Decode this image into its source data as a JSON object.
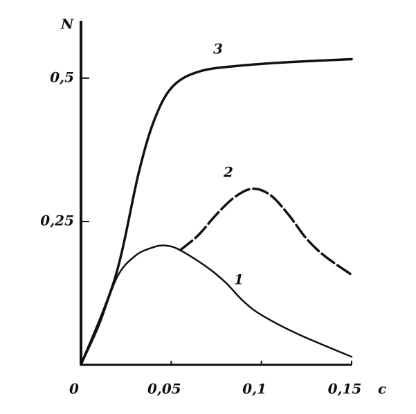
{
  "chart_data": {
    "type": "line",
    "x_label": "с",
    "y_label": "N",
    "xlim": [
      0,
      0.15
    ],
    "ylim": [
      0,
      0.6
    ],
    "xticks": [
      0,
      {
        "value": 0.05,
        "label": "0,05"
      },
      {
        "value": 0.1,
        "label": "0,1"
      },
      {
        "value": 0.15,
        "label": "0,15"
      }
    ],
    "yticks": [
      {
        "value": 0.25,
        "label": "0,25"
      },
      {
        "value": 0.5,
        "label": "0,5"
      }
    ],
    "series": [
      {
        "name": "1",
        "color": "#111111",
        "dashed": false,
        "x": [
          0,
          0.01,
          0.02,
          0.03,
          0.04,
          0.047,
          0.055,
          0.07,
          0.08,
          0.09,
          0.1,
          0.12,
          0.15
        ],
        "values": [
          0,
          0.069,
          0.153,
          0.19,
          0.205,
          0.208,
          0.2,
          0.17,
          0.144,
          0.111,
          0.087,
          0.054,
          0.014
        ]
      },
      {
        "name": "2",
        "color": "#111111",
        "dashed": true,
        "x": [
          0.055,
          0.065,
          0.075,
          0.085,
          0.095,
          0.105,
          0.115,
          0.125,
          0.135,
          0.15
        ],
        "values": [
          0.2,
          0.226,
          0.262,
          0.292,
          0.307,
          0.296,
          0.262,
          0.22,
          0.19,
          0.157
        ]
      },
      {
        "name": "3",
        "color": "#111111",
        "dashed": false,
        "x": [
          0,
          0.019,
          0.032,
          0.041,
          0.051,
          0.066,
          0.089,
          0.116,
          0.15
        ],
        "values": [
          0,
          0.153,
          0.335,
          0.43,
          0.486,
          0.512,
          0.522,
          0.528,
          0.533
        ]
      }
    ]
  }
}
